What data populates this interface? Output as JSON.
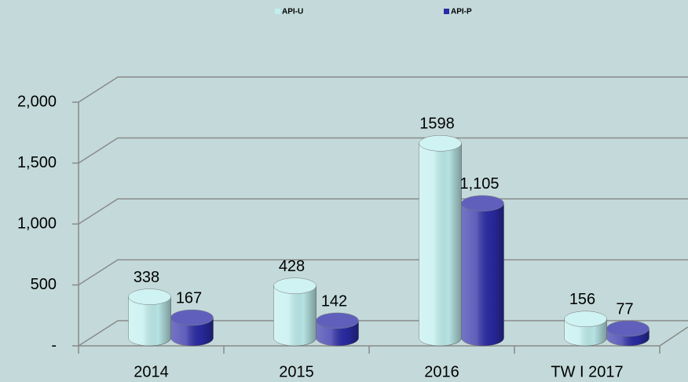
{
  "chart_data": {
    "type": "bar3d",
    "categories": [
      "2014",
      "2015",
      "2016",
      "TW I 2017"
    ],
    "series": [
      {
        "name": "API-U",
        "color": "#bfeeee",
        "values": [
          338,
          428,
          1598,
          156
        ]
      },
      {
        "name": "API-P",
        "color": "#2b2ba6",
        "values": [
          167,
          142,
          1105,
          77
        ],
        "value_labels": [
          "167",
          "142",
          "1,105",
          "77"
        ]
      }
    ],
    "ylim": [
      0,
      2000
    ],
    "yticks": [
      {
        "value": 0,
        "label": "-"
      },
      500,
      {
        "value": 1000,
        "label": "1,000"
      },
      {
        "value": 1500,
        "label": "1,500"
      },
      {
        "value": 2000,
        "label": "2,000"
      }
    ],
    "grid": true,
    "legend": "top"
  }
}
